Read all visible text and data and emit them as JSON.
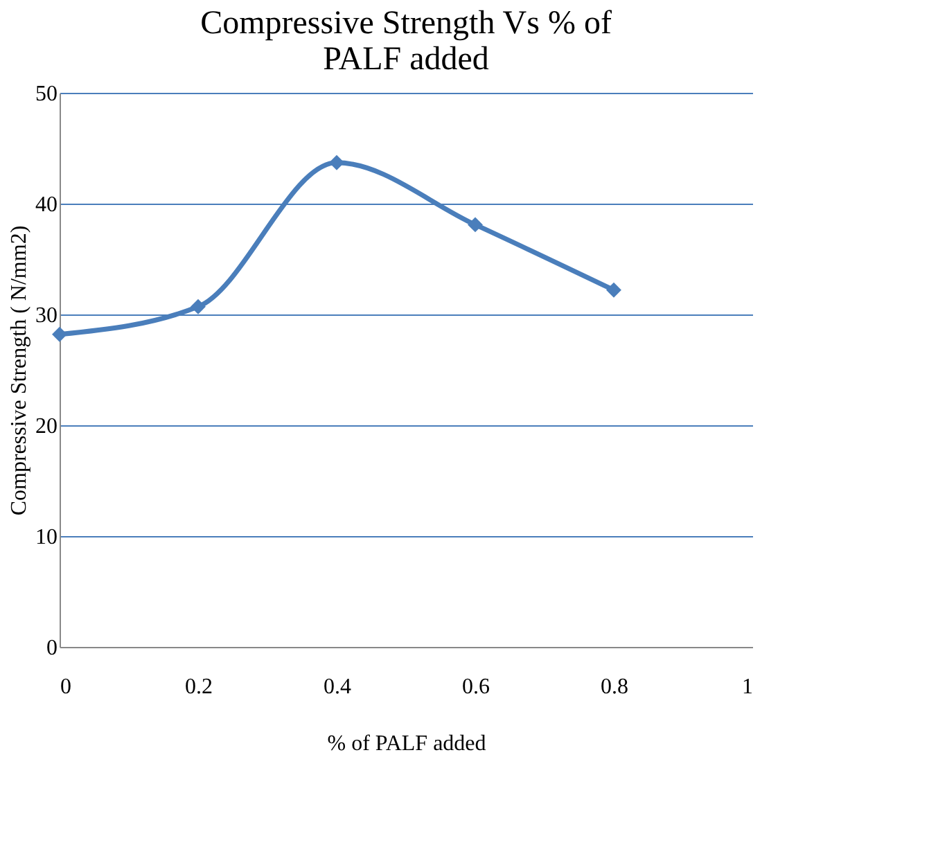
{
  "chart_data": {
    "type": "line",
    "title": "Compressive Strength Vs % of PALF added",
    "xlabel": "% of PALF added",
    "ylabel": "Compressive Strength ( N/mm2)",
    "x": [
      0,
      0.2,
      0.4,
      0.6,
      0.8
    ],
    "series": [
      {
        "color": "#4a7ebb",
        "values": [
          28.2,
          30.7,
          43.7,
          38.1,
          32.2
        ]
      }
    ],
    "xlim": [
      0,
      1
    ],
    "xticks": [
      0,
      0.2,
      0.4,
      0.6,
      0.8,
      1
    ],
    "ylim": [
      0,
      50
    ],
    "yticks": [
      0,
      10,
      20,
      30,
      40,
      50
    ],
    "grid": "y",
    "marker": "diamond",
    "line_style": "solid"
  }
}
